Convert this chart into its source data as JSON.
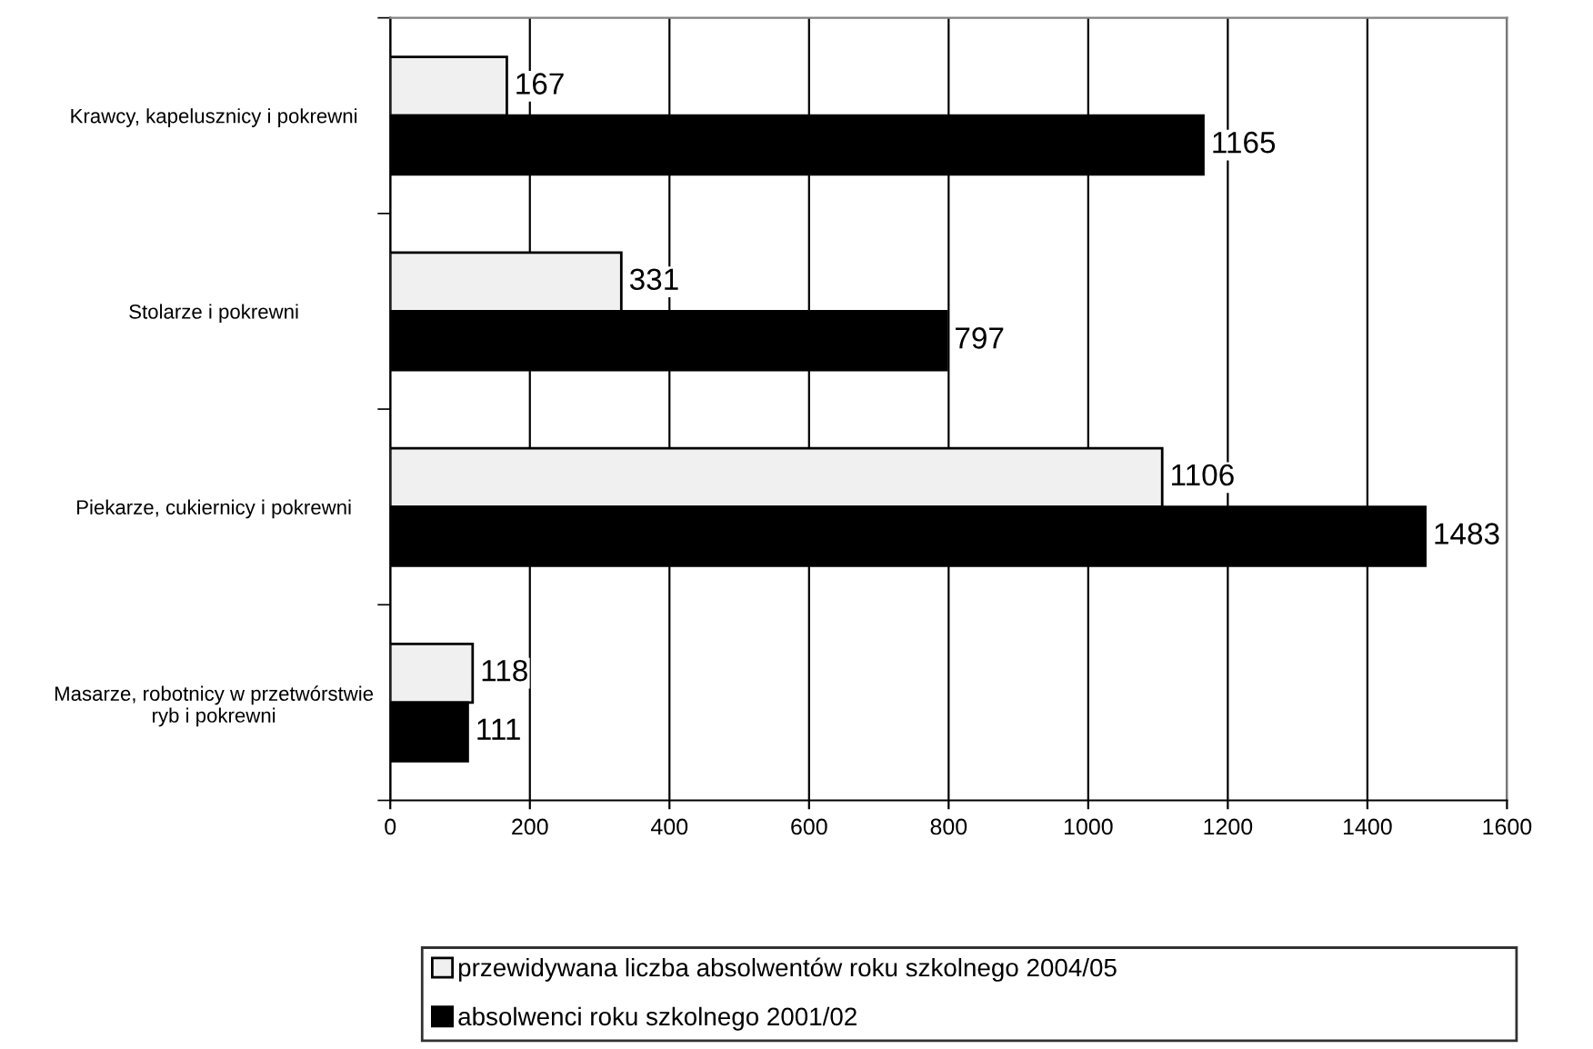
{
  "chart_data": {
    "type": "bar",
    "orientation": "horizontal",
    "categories": [
      "Krawcy, kapelusznicy i pokrewni",
      "Stolarze i pokrewni",
      "Piekarze, cukiernicy i pokrewni",
      "Masarze, robotnicy w przetwórstwie\nryb i pokrewni"
    ],
    "series": [
      {
        "name": "przewidywana liczba absolwentów roku szkolnego 2004/05",
        "color": "#f0f0f0",
        "values": [
          167,
          331,
          1106,
          118
        ]
      },
      {
        "name": "absolwenci roku szkolnego 2001/02",
        "color": "#000000",
        "values": [
          1165,
          797,
          1483,
          111
        ]
      }
    ],
    "xlim": [
      0,
      1600
    ],
    "xticks": [
      0,
      200,
      400,
      600,
      800,
      1000,
      1200,
      1400,
      1600
    ],
    "grid": "x",
    "legend": "bottom",
    "data_labels": true
  }
}
